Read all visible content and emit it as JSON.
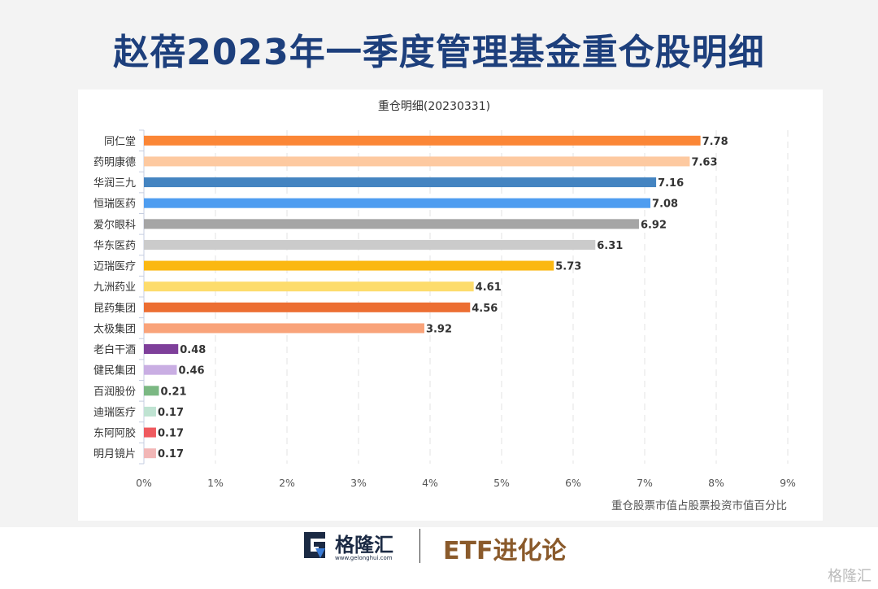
{
  "title": "赵蓓2023年一季度管理基金重仓股明细",
  "chart_data": {
    "type": "bar",
    "orientation": "horizontal",
    "title": "重仓明细(20230331)",
    "xlabel": "重仓股票市值占股票投资市值百分比",
    "ylabel": "",
    "xlim": [
      0,
      9
    ],
    "x_ticks": [
      "0%",
      "1%",
      "2%",
      "3%",
      "4%",
      "5%",
      "6%",
      "7%",
      "8%",
      "9%"
    ],
    "grid": true,
    "categories": [
      "同仁堂",
      "药明康德",
      "华润三九",
      "恒瑞医药",
      "爱尔眼科",
      "华东医药",
      "迈瑞医疗",
      "九洲药业",
      "昆药集团",
      "太极集团",
      "老白干酒",
      "健民集团",
      "百润股份",
      "迪瑞医疗",
      "东阿阿胶",
      "明月镜片"
    ],
    "values": [
      7.78,
      7.63,
      7.16,
      7.08,
      6.92,
      6.31,
      5.73,
      4.61,
      4.56,
      3.92,
      0.48,
      0.46,
      0.21,
      0.17,
      0.17,
      0.17
    ],
    "value_labels": [
      "7.78",
      "7.63",
      "7.16",
      "7.08",
      "6.92",
      "6.31",
      "5.73",
      "4.61",
      "4.56",
      "3.92",
      "0.48",
      "0.46",
      "0.21",
      "0.17",
      "0.17",
      "0.17"
    ],
    "colors": [
      "#fb8636",
      "#fdc9a0",
      "#4484c1",
      "#4e9df0",
      "#a5a5a5",
      "#cbcbcb",
      "#fbb812",
      "#fddc6c",
      "#ec6e32",
      "#f9a37a",
      "#7e3f9a",
      "#c9aee3",
      "#7bb883",
      "#bfe3d2",
      "#ef5a5f",
      "#f2b6b6"
    ]
  },
  "footer": {
    "logo_text": "格隆汇",
    "logo_url": "www.gelonghui.com",
    "brand": "ETF进化论",
    "watermark": "格隆汇"
  }
}
